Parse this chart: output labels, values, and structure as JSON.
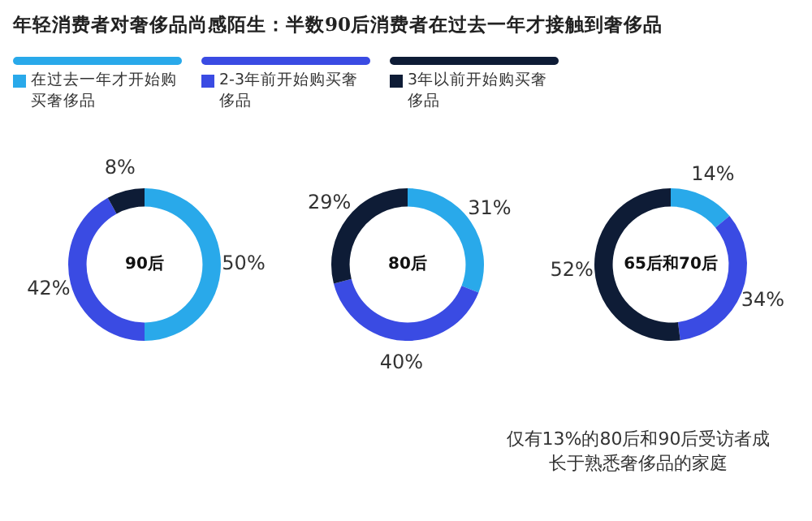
{
  "chart_data": [
    {
      "type": "donut",
      "title": "年轻消费者对奢侈品尚感陌生：半数90后消费者在过去一年才接触到奢侈品",
      "categories": [
        "在过去一年才开始购买奢侈品",
        "2-3年前开始购买奢侈品",
        "3年以前开始购买奢侈品"
      ],
      "values": [
        50,
        42,
        8
      ],
      "value_labels": [
        "50%",
        "42%",
        "8%"
      ],
      "colors": [
        "#29a9ea",
        "#3a4be3",
        "#0e1c36"
      ],
      "legend": "top",
      "annotations": [
        "90后"
      ]
    },
    {
      "type": "donut",
      "categories": [
        null,
        null,
        null
      ],
      "values": [
        31,
        40,
        29
      ],
      "value_labels": [
        "31%",
        "40%",
        "29%"
      ],
      "colors": [
        "#29a9ea",
        "#3a4be3",
        "#0e1c36"
      ],
      "annotations": [
        "80后"
      ]
    },
    {
      "type": "donut",
      "categories": [
        null,
        null,
        null
      ],
      "values": [
        14,
        34,
        52
      ],
      "value_labels": [
        "14%",
        "34%",
        "52%"
      ],
      "colors": [
        "#29a9ea",
        "#3a4be3",
        "#0e1c36"
      ],
      "annotations": [
        "65后和70后",
        "仅有13%的80后和90后受访者成长于熟悉奢侈品的家庭"
      ]
    }
  ]
}
